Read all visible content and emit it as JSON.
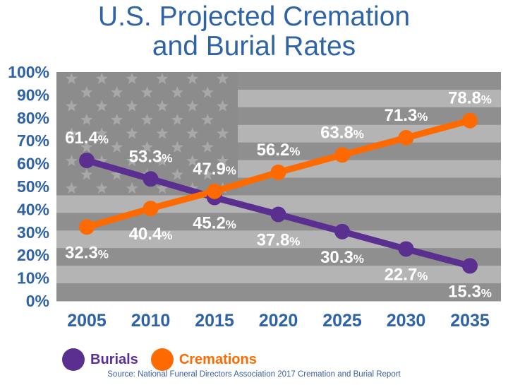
{
  "chart_data": {
    "type": "line",
    "title_line1": "U.S. Projected Cremation",
    "title_line2": "and Burial Rates",
    "x": [
      "2005",
      "2010",
      "2015",
      "2020",
      "2025",
      "2030",
      "2035"
    ],
    "ylim": [
      0,
      100
    ],
    "yticks": [
      "0%",
      "10%",
      "20%",
      "30%",
      "40%",
      "50%",
      "60%",
      "70%",
      "80%",
      "90%",
      "100%"
    ],
    "grid": false,
    "legend_position": "bottom-left",
    "series": [
      {
        "name": "Burials",
        "color": "#5b2f8f",
        "values": [
          61.4,
          53.3,
          45.2,
          37.8,
          30.3,
          22.7,
          15.3
        ],
        "labels": [
          "61.4%",
          "53.3%",
          "45.2%",
          "37.8%",
          "30.3%",
          "22.7%",
          "15.3%"
        ]
      },
      {
        "name": "Cremations",
        "color": "#ff6a00",
        "values": [
          32.3,
          40.4,
          47.9,
          56.2,
          63.8,
          71.3,
          78.8
        ],
        "labels": [
          "32.3%",
          "40.4%",
          "47.9%",
          "56.2%",
          "63.8%",
          "71.3%",
          "78.8%"
        ]
      }
    ],
    "background": "faded U.S. flag",
    "source": "Source: National Funeral Directors Association 2017 Cremation and Burial Report"
  }
}
